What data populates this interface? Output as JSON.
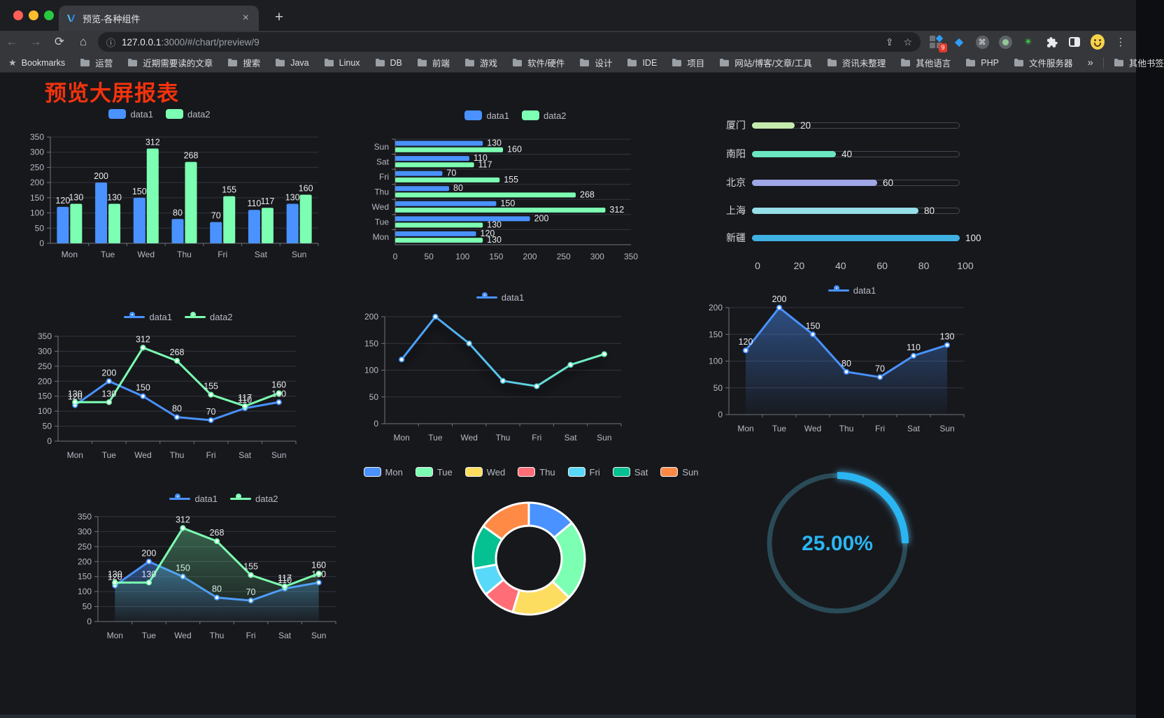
{
  "browser": {
    "tab": {
      "title": "预览-各种组件"
    },
    "address": {
      "url_host": "127.0.0.1",
      "url_rest": ":3000/#/chart/preview/9"
    },
    "extensions_badge": "9",
    "bookmarks": {
      "label": "Bookmarks",
      "items": [
        "运营",
        "近期需要读的文章",
        "搜索",
        "Java",
        "Linux",
        "DB",
        "前端",
        "游戏",
        "软件/硬件",
        "设计",
        "IDE",
        "项目",
        "网站/博客/文章/工具",
        "资讯未整理",
        "其他语言",
        "PHP",
        "文件服务器"
      ],
      "other_label": "其他书签"
    }
  },
  "icons": {
    "close": "×",
    "new_tab": "+",
    "back": "←",
    "forward": "→",
    "reload": "⟳",
    "home": "⌂",
    "info": "ⓘ",
    "share": "⇪",
    "star": "☆",
    "bookmarks_star": "★",
    "overflow": "»",
    "menu": "⋮",
    "command": "⌘",
    "gem": "◆",
    "green_star": "✴",
    "puzzle": "▚"
  },
  "page": {
    "title": "预览大屏报表",
    "title_color": "#f2330d",
    "background": "#17181c"
  },
  "chart_data": [
    {
      "id": "c1",
      "type": "bar",
      "categories": [
        "Mon",
        "Tue",
        "Wed",
        "Thu",
        "Fri",
        "Sat",
        "Sun"
      ],
      "ylim": [
        0,
        350
      ],
      "ystep": 50,
      "series": [
        {
          "name": "data1",
          "color": "#4992ff",
          "values": [
            120,
            200,
            150,
            80,
            70,
            110,
            130
          ]
        },
        {
          "name": "data2",
          "color": "#7cffb2",
          "values": [
            130,
            130,
            312,
            268,
            155,
            117,
            160
          ]
        }
      ]
    },
    {
      "id": "c2",
      "type": "bar-horizontal",
      "categories": [
        "Mon",
        "Tue",
        "Wed",
        "Thu",
        "Fri",
        "Sat",
        "Sun"
      ],
      "xlim": [
        0,
        350
      ],
      "xstep": 50,
      "series": [
        {
          "name": "data1",
          "color": "#4992ff",
          "values": [
            120,
            200,
            150,
            80,
            70,
            110,
            130
          ]
        },
        {
          "name": "data2",
          "color": "#7cffb2",
          "values": [
            130,
            130,
            312,
            268,
            155,
            117,
            160
          ]
        }
      ]
    },
    {
      "id": "c3",
      "type": "progress",
      "axis_ticks": [
        0,
        20,
        40,
        60,
        80,
        100
      ],
      "items": [
        {
          "label": "厦门",
          "value": 20,
          "color": "#c4ebad"
        },
        {
          "label": "南阳",
          "value": 40,
          "color": "#6be6c1"
        },
        {
          "label": "北京",
          "value": 60,
          "color": "#a0a7e6"
        },
        {
          "label": "上海",
          "value": 80,
          "color": "#96dee8"
        },
        {
          "label": "新疆",
          "value": 100,
          "color": "#3fb1e3"
        }
      ]
    },
    {
      "id": "c4",
      "type": "line",
      "categories": [
        "Mon",
        "Tue",
        "Wed",
        "Thu",
        "Fri",
        "Sat",
        "Sun"
      ],
      "ylim": [
        0,
        350
      ],
      "ystep": 50,
      "show_labels": true,
      "series": [
        {
          "name": "data1",
          "color": "#4992ff",
          "values": [
            120,
            200,
            150,
            80,
            70,
            110,
            130
          ]
        },
        {
          "name": "data2",
          "color": "#7cffb2",
          "values": [
            130,
            130,
            312,
            268,
            155,
            117,
            160
          ]
        }
      ]
    },
    {
      "id": "c5",
      "type": "line",
      "categories": [
        "Mon",
        "Tue",
        "Wed",
        "Thu",
        "Fri",
        "Sat",
        "Sun"
      ],
      "ylim": [
        0,
        200
      ],
      "ystep": 50,
      "show_labels": false,
      "shadow": true,
      "gradient": [
        "#4992ff",
        "#57c7e8",
        "#7cffb2"
      ],
      "series": [
        {
          "name": "data1",
          "color": "#4992ff",
          "values": [
            120,
            200,
            150,
            80,
            70,
            110,
            130
          ]
        }
      ]
    },
    {
      "id": "c6",
      "type": "line",
      "categories": [
        "Mon",
        "Tue",
        "Wed",
        "Thu",
        "Fri",
        "Sat",
        "Sun"
      ],
      "ylim": [
        0,
        200
      ],
      "ystep": 50,
      "show_labels": true,
      "series": [
        {
          "name": "data1",
          "color": "#4992ff",
          "values": [
            120,
            200,
            150,
            80,
            70,
            110,
            130
          ],
          "area": true
        }
      ]
    },
    {
      "id": "c7",
      "type": "line",
      "categories": [
        "Mon",
        "Tue",
        "Wed",
        "Thu",
        "Fri",
        "Sat",
        "Sun"
      ],
      "ylim": [
        0,
        350
      ],
      "ystep": 50,
      "show_labels": true,
      "series": [
        {
          "name": "data1",
          "color": "#4992ff",
          "values": [
            120,
            200,
            150,
            80,
            70,
            110,
            130
          ],
          "area": true
        },
        {
          "name": "data2",
          "color": "#7cffb2",
          "values": [
            130,
            130,
            312,
            268,
            155,
            117,
            160
          ],
          "area": true
        }
      ]
    },
    {
      "id": "c8",
      "type": "pie",
      "items": [
        {
          "label": "Mon",
          "value": 120,
          "color": "#4992ff"
        },
        {
          "label": "Tue",
          "value": 200,
          "color": "#7cffb2"
        },
        {
          "label": "Wed",
          "value": 150,
          "color": "#fddd60"
        },
        {
          "label": "Thu",
          "value": 80,
          "color": "#ff6e76"
        },
        {
          "label": "Fri",
          "value": 70,
          "color": "#58d9f9"
        },
        {
          "label": "Sat",
          "value": 110,
          "color": "#05c091"
        },
        {
          "label": "Sun",
          "value": 130,
          "color": "#ff8a45"
        }
      ]
    },
    {
      "id": "c9",
      "type": "gauge",
      "label": "25.00%",
      "percent": 25,
      "color": "#2ab6f2",
      "track_color": "#2a4a57"
    }
  ]
}
